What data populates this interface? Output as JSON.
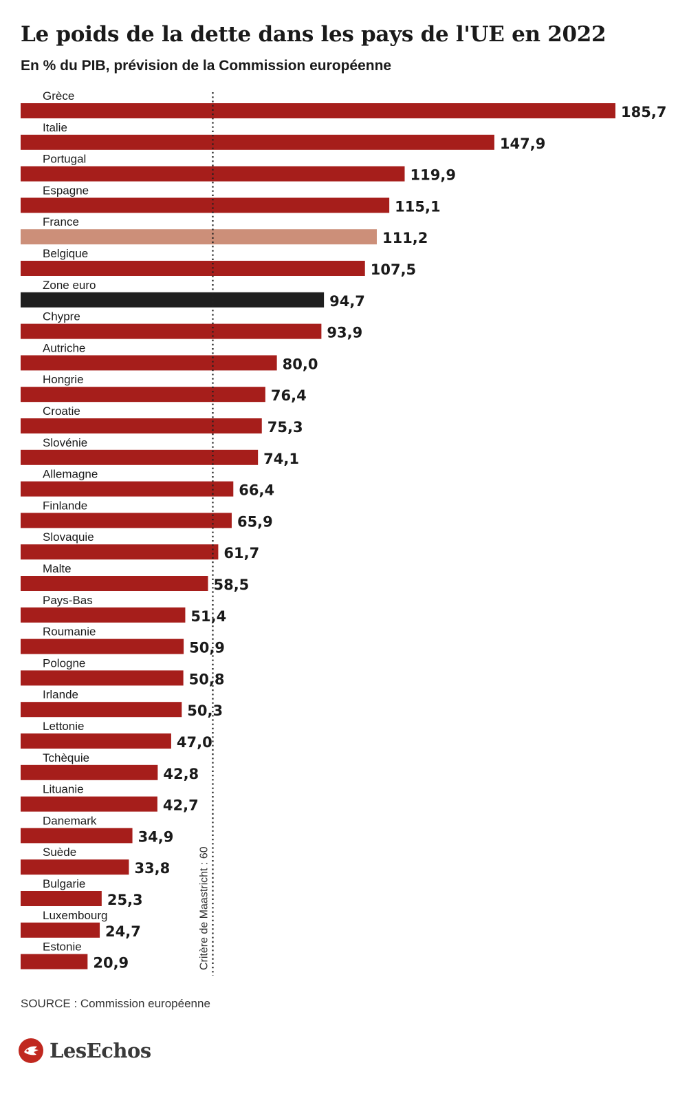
{
  "title": "Le poids de la dette dans les pays de l'UE en 2022",
  "subtitle": "En % du PIB, prévision de la Commission européenne",
  "source": "SOURCE : Commission européenne",
  "logo": "LesEchos",
  "colors": {
    "default": "#a61e1b",
    "highlight": "#cc8f79",
    "aggregate": "#1f1f1f",
    "text": "#1a1a1a"
  },
  "chart_data": {
    "type": "bar",
    "orientation": "horizontal",
    "categories": [
      "Grèce",
      "Italie",
      "Portugal",
      "Espagne",
      "France",
      "Belgique",
      "Zone euro",
      "Chypre",
      "Autriche",
      "Hongrie",
      "Croatie",
      "Slovénie",
      "Allemagne",
      "Finlande",
      "Slovaquie",
      "Malte",
      "Pays-Bas",
      "Roumanie",
      "Pologne",
      "Irlande",
      "Lettonie",
      "Tchèquie",
      "Lituanie",
      "Danemark",
      "Suède",
      "Bulgarie",
      "Luxembourg",
      "Estonie"
    ],
    "values": [
      185.7,
      147.9,
      119.9,
      115.1,
      111.2,
      107.5,
      94.7,
      93.9,
      80.0,
      76.4,
      75.3,
      74.1,
      66.4,
      65.9,
      61.7,
      58.5,
      51.4,
      50.9,
      50.8,
      50.3,
      47.0,
      42.8,
      42.7,
      34.9,
      33.8,
      25.3,
      24.7,
      20.9
    ],
    "value_labels": [
      "185,7",
      "147,9",
      "119,9",
      "115,1",
      "111,2",
      "107,5",
      "94,7",
      "93,9",
      "80,0",
      "76,4",
      "75,3",
      "74,1",
      "66,4",
      "65,9",
      "61,7",
      "58,5",
      "51,4",
      "50,9",
      "50,8",
      "50,3",
      "47,0",
      "42,8",
      "42,7",
      "34,9",
      "33,8",
      "25,3",
      "24,7",
      "20,9"
    ],
    "highlight": {
      "France": "highlight",
      "Zone euro": "aggregate"
    },
    "reference_line": {
      "value": 60,
      "label": "Critère de Maastricht : 60",
      "style": "dotted"
    },
    "xlim": [
      0,
      185.7
    ],
    "title": "Le poids de la dette dans les pays de l'UE en 2022",
    "subtitle": "En % du PIB, prévision de la Commission européenne"
  }
}
